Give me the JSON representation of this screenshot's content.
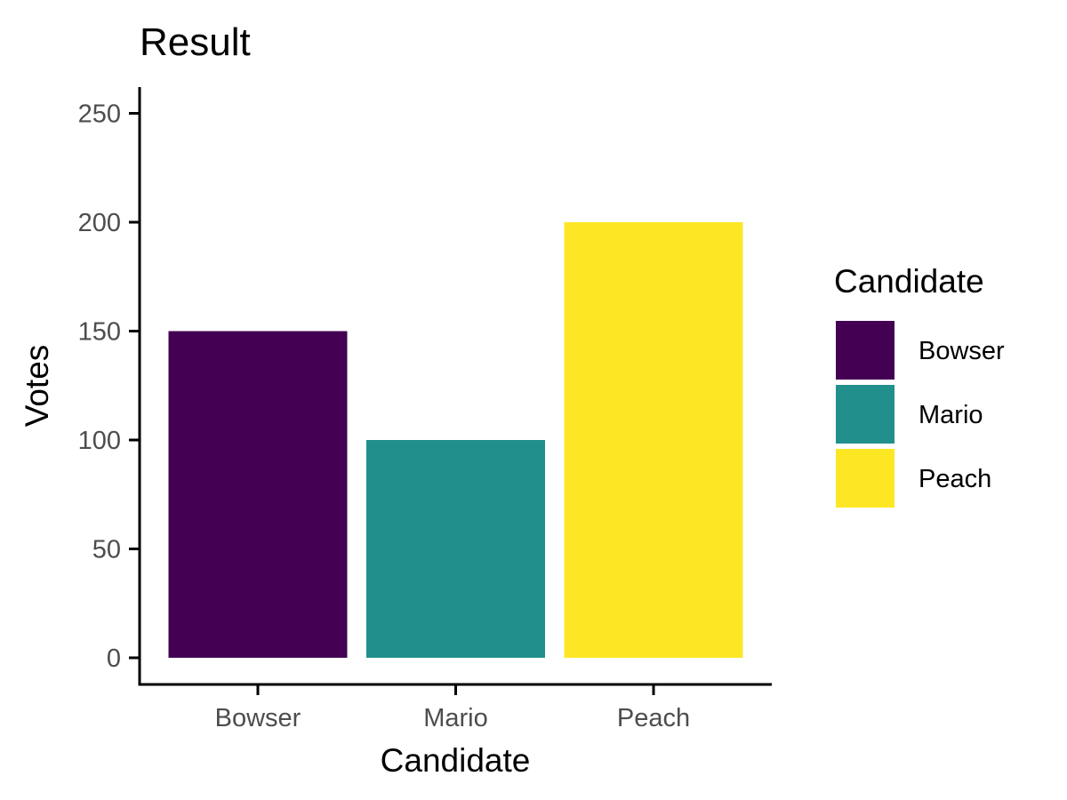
{
  "chart_data": {
    "type": "bar",
    "title": "Result",
    "xlabel": "Candidate",
    "ylabel": "Votes",
    "categories": [
      "Bowser",
      "Mario",
      "Peach"
    ],
    "values": [
      150,
      100,
      200
    ],
    "colors": [
      "#440154",
      "#21908C",
      "#FDE725"
    ],
    "ylim": [
      0,
      260
    ],
    "yticks": [
      0,
      50,
      100,
      150,
      200,
      250
    ],
    "grid": false,
    "legend": {
      "title": "Candidate",
      "placement": "right",
      "items": [
        {
          "label": "Bowser",
          "color": "#440154"
        },
        {
          "label": "Mario",
          "color": "#21908C"
        },
        {
          "label": "Peach",
          "color": "#FDE725"
        }
      ]
    }
  }
}
